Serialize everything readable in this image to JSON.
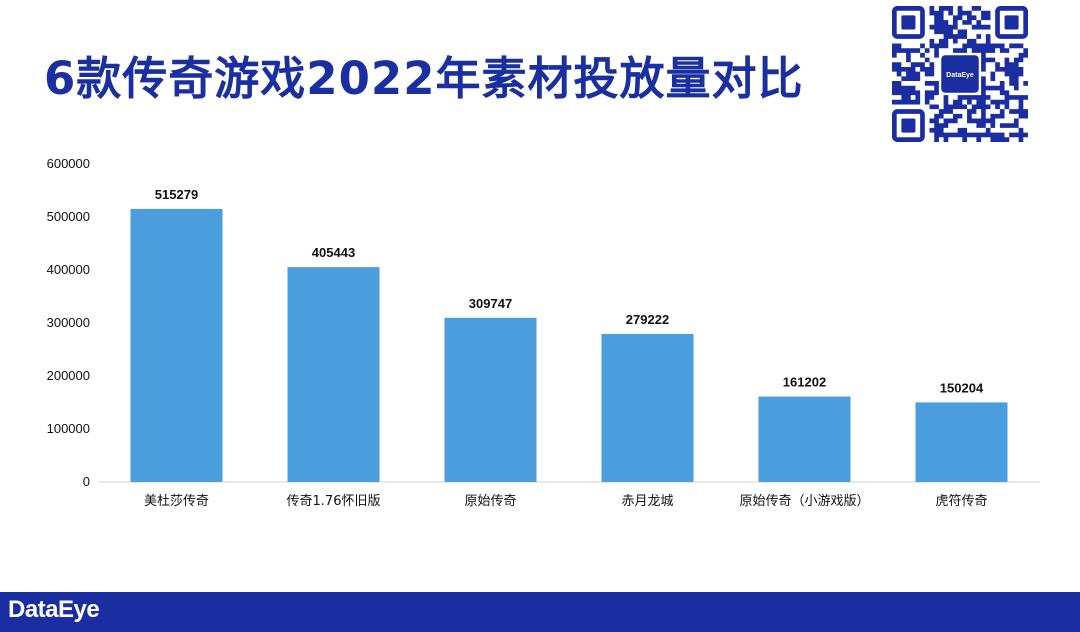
{
  "header": {
    "title": "6款传奇游戏2022年素材投放量对比"
  },
  "qr_code": {
    "center_label": "DataEye"
  },
  "footer": {
    "brand": "DataEye"
  },
  "colors": {
    "title": "#1a2fa0",
    "bar": "#4a9ede",
    "footer": "#1a2ea2",
    "axis": "#d0d0d0"
  },
  "chart_data": {
    "type": "bar",
    "title": "",
    "xlabel": "",
    "ylabel": "",
    "ylim": [
      0,
      600000
    ],
    "yticks": [
      "0",
      "100000",
      "200000",
      "300000",
      "400000",
      "500000",
      "600000"
    ],
    "grid": false,
    "categories": [
      "美杜莎传奇",
      "传奇1.76怀旧版",
      "原始传奇",
      "赤月龙城",
      "原始传奇（小游戏版）",
      "虎符传奇"
    ],
    "values": [
      515279,
      405443,
      309747,
      279222,
      161202,
      150204
    ],
    "value_labels": [
      "515279",
      "405443",
      "309747",
      "279222",
      "161202",
      "150204"
    ]
  }
}
